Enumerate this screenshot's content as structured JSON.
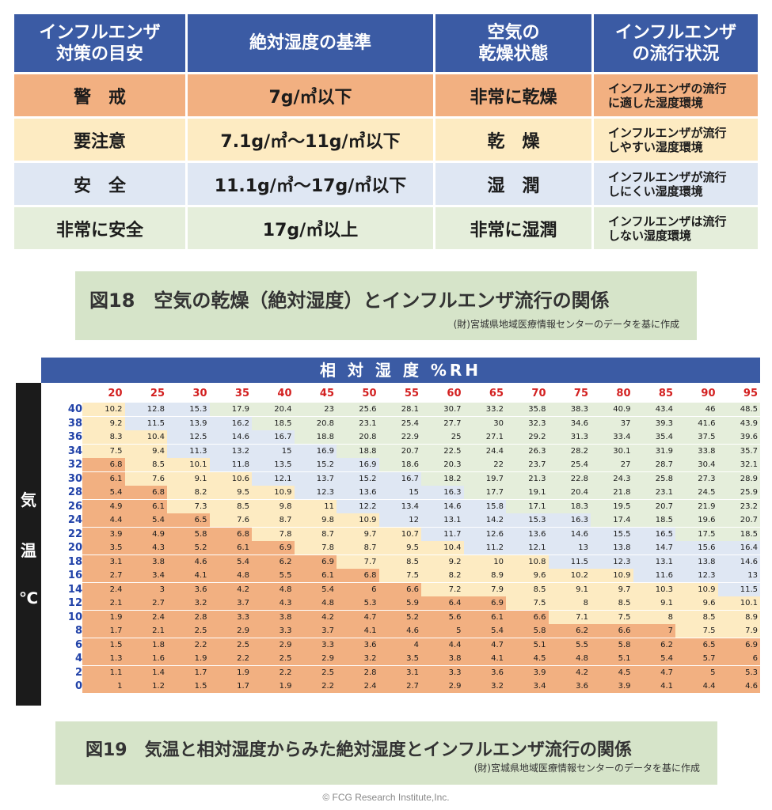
{
  "table1": {
    "headers": [
      "インフルエンザ\n対策の目安",
      "絶対湿度の基準",
      "空気の\n乾燥状態",
      "インフルエンザ\nの流行状況"
    ],
    "rows": [
      {
        "level": "警　戒",
        "criterion": "7g/㎥以下",
        "state": "非常に乾燥",
        "situation": "インフルエンザの流行\nに適した湿度環境"
      },
      {
        "level": "要注意",
        "criterion": "7.1g/㎥〜11g/㎥以下",
        "state": "乾　燥",
        "situation": "インフルエンザが流行\nしやすい湿度環境"
      },
      {
        "level": "安　全",
        "criterion": "11.1g/㎥〜17g/㎥以下",
        "state": "湿　潤",
        "situation": "インフルエンザが流行\nしにくい湿度環境"
      },
      {
        "level": "非常に安全",
        "criterion": "17g/㎥以上",
        "state": "非常に湿潤",
        "situation": "インフルエンザは流行\nしない湿度環境"
      }
    ]
  },
  "caption1": {
    "title": "図18　空気の乾燥（絶対湿度）とインフルエンザ流行の関係",
    "source": "(財)宮城県地域医療情報センターのデータを基に作成"
  },
  "heat": {
    "header": "相 対 湿 度 %RH",
    "side_label": [
      "気",
      "温",
      "℃"
    ],
    "colors": {
      "warning": "#f2b081",
      "caution": "#fdebc2",
      "safe": "#dfe7f3",
      "very_safe": "#e5eedb"
    }
  },
  "chart_data": {
    "type": "heatmap",
    "title": "相 対 湿 度 %RH",
    "xlabel": "相 対 湿 度 %RH",
    "ylabel": "気温 ℃",
    "x": [
      "20",
      "25",
      "30",
      "35",
      "40",
      "45",
      "50",
      "55",
      "60",
      "65",
      "70",
      "75",
      "80",
      "85",
      "90",
      "95"
    ],
    "y": [
      "40",
      "38",
      "36",
      "34",
      "32",
      "30",
      "28",
      "26",
      "24",
      "22",
      "20",
      "18",
      "16",
      "14",
      "12",
      "10",
      "8",
      "6",
      "4",
      "2",
      "0"
    ],
    "values": [
      [
        "10.2",
        "12.8",
        "15.3",
        "17.9",
        "20.4",
        "23",
        "25.6",
        "28.1",
        "30.7",
        "33.2",
        "35.8",
        "38.3",
        "40.9",
        "43.4",
        "46",
        "48.5"
      ],
      [
        "9.2",
        "11.5",
        "13.9",
        "16.2",
        "18.5",
        "20.8",
        "23.1",
        "25.4",
        "27.7",
        "30",
        "32.3",
        "34.6",
        "37",
        "39.3",
        "41.6",
        "43.9"
      ],
      [
        "8.3",
        "10.4",
        "12.5",
        "14.6",
        "16.7",
        "18.8",
        "20.8",
        "22.9",
        "25",
        "27.1",
        "29.2",
        "31.3",
        "33.4",
        "35.4",
        "37.5",
        "39.6"
      ],
      [
        "7.5",
        "9.4",
        "11.3",
        "13.2",
        "15",
        "16.9",
        "18.8",
        "20.7",
        "22.5",
        "24.4",
        "26.3",
        "28.2",
        "30.1",
        "31.9",
        "33.8",
        "35.7"
      ],
      [
        "6.8",
        "8.5",
        "10.1",
        "11.8",
        "13.5",
        "15.2",
        "16.9",
        "18.6",
        "20.3",
        "22",
        "23.7",
        "25.4",
        "27",
        "28.7",
        "30.4",
        "32.1"
      ],
      [
        "6.1",
        "7.6",
        "9.1",
        "10.6",
        "12.1",
        "13.7",
        "15.2",
        "16.7",
        "18.2",
        "19.7",
        "21.3",
        "22.8",
        "24.3",
        "25.8",
        "27.3",
        "28.9"
      ],
      [
        "5.4",
        "6.8",
        "8.2",
        "9.5",
        "10.9",
        "12.3",
        "13.6",
        "15",
        "16.3",
        "17.7",
        "19.1",
        "20.4",
        "21.8",
        "23.1",
        "24.5",
        "25.9"
      ],
      [
        "4.9",
        "6.1",
        "7.3",
        "8.5",
        "9.8",
        "11",
        "12.2",
        "13.4",
        "14.6",
        "15.8",
        "17.1",
        "18.3",
        "19.5",
        "20.7",
        "21.9",
        "23.2"
      ],
      [
        "4.4",
        "5.4",
        "6.5",
        "7.6",
        "8.7",
        "9.8",
        "10.9",
        "12",
        "13.1",
        "14.2",
        "15.3",
        "16.3",
        "17.4",
        "18.5",
        "19.6",
        "20.7"
      ],
      [
        "3.9",
        "4.9",
        "5.8",
        "6.8",
        "7.8",
        "8.7",
        "9.7",
        "10.7",
        "11.7",
        "12.6",
        "13.6",
        "14.6",
        "15.5",
        "16.5",
        "17.5",
        "18.5"
      ],
      [
        "3.5",
        "4.3",
        "5.2",
        "6.1",
        "6.9",
        "7.8",
        "8.7",
        "9.5",
        "10.4",
        "11.2",
        "12.1",
        "13",
        "13.8",
        "14.7",
        "15.6",
        "16.4"
      ],
      [
        "3.1",
        "3.8",
        "4.6",
        "5.4",
        "6.2",
        "6.9",
        "7.7",
        "8.5",
        "9.2",
        "10",
        "10.8",
        "11.5",
        "12.3",
        "13.1",
        "13.8",
        "14.6"
      ],
      [
        "2.7",
        "3.4",
        "4.1",
        "4.8",
        "5.5",
        "6.1",
        "6.8",
        "7.5",
        "8.2",
        "8.9",
        "9.6",
        "10.2",
        "10.9",
        "11.6",
        "12.3",
        "13"
      ],
      [
        "2.4",
        "3",
        "3.6",
        "4.2",
        "4.8",
        "5.4",
        "6",
        "6.6",
        "7.2",
        "7.9",
        "8.5",
        "9.1",
        "9.7",
        "10.3",
        "10.9",
        "11.5"
      ],
      [
        "2.1",
        "2.7",
        "3.2",
        "3.7",
        "4.3",
        "4.8",
        "5.3",
        "5.9",
        "6.4",
        "6.9",
        "7.5",
        "8",
        "8.5",
        "9.1",
        "9.6",
        "10.1"
      ],
      [
        "1.9",
        "2.4",
        "2.8",
        "3.3",
        "3.8",
        "4.2",
        "4.7",
        "5.2",
        "5.6",
        "6.1",
        "6.6",
        "7.1",
        "7.5",
        "8",
        "8.5",
        "8.9"
      ],
      [
        "1.7",
        "2.1",
        "2.5",
        "2.9",
        "3.3",
        "3.7",
        "4.1",
        "4.6",
        "5",
        "5.4",
        "5.8",
        "6.2",
        "6.6",
        "7",
        "7.5",
        "7.9"
      ],
      [
        "1.5",
        "1.8",
        "2.2",
        "2.5",
        "2.9",
        "3.3",
        "3.6",
        "4",
        "4.4",
        "4.7",
        "5.1",
        "5.5",
        "5.8",
        "6.2",
        "6.5",
        "6.9"
      ],
      [
        "1.3",
        "1.6",
        "1.9",
        "2.2",
        "2.5",
        "2.9",
        "3.2",
        "3.5",
        "3.8",
        "4.1",
        "4.5",
        "4.8",
        "5.1",
        "5.4",
        "5.7",
        "6"
      ],
      [
        "1.1",
        "1.4",
        "1.7",
        "1.9",
        "2.2",
        "2.5",
        "2.8",
        "3.1",
        "3.3",
        "3.6",
        "3.9",
        "4.2",
        "4.5",
        "4.7",
        "5",
        "5.3"
      ],
      [
        "1",
        "1.2",
        "1.5",
        "1.7",
        "1.9",
        "2.2",
        "2.4",
        "2.7",
        "2.9",
        "3.2",
        "3.4",
        "3.6",
        "3.9",
        "4.1",
        "4.4",
        "4.6"
      ]
    ]
  },
  "caption2": {
    "title": "図19　気温と相対湿度からみた絶対湿度とインフルエンザ流行の関係",
    "source": "(財)宮城県地域医療情報センターのデータを基に作成"
  },
  "copyright": "© FCG Research Institute,Inc."
}
